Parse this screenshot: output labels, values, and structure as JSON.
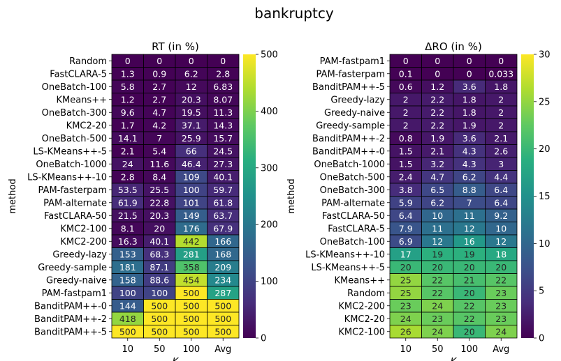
{
  "figure": {
    "title": "bankruptcy"
  },
  "chart_data": [
    {
      "type": "heatmap",
      "title": "RT (in %)",
      "xlabel": "K",
      "ylabel": "method",
      "columns": [
        "10",
        "50",
        "100",
        "Avg"
      ],
      "rows": [
        "Random",
        "FastCLARA-5",
        "OneBatch-100",
        "KMeans++",
        "OneBatch-300",
        "KMC2-20",
        "OneBatch-500",
        "LS-KMeans++-5",
        "OneBatch-1000",
        "LS-KMeans++-10",
        "PAM-fasterpam",
        "PAM-alternate",
        "FastCLARA-50",
        "KMC2-100",
        "KMC2-200",
        "Greedy-lazy",
        "Greedy-sample",
        "Greedy-naive",
        "PAM-fastpam1",
        "BanditPAM++-0",
        "BanditPAM++-2",
        "BanditPAM++-5"
      ],
      "values": [
        [
          0,
          0,
          0,
          0
        ],
        [
          1.3,
          0.9,
          6.2,
          2.8
        ],
        [
          5.8,
          2.7,
          12,
          6.83
        ],
        [
          1.2,
          2.7,
          20.3,
          8.07
        ],
        [
          9.6,
          4.7,
          19.5,
          11.3
        ],
        [
          1.7,
          4.2,
          37.1,
          14.3
        ],
        [
          14.1,
          7,
          25.9,
          15.7
        ],
        [
          2.1,
          5.4,
          66,
          24.5
        ],
        [
          24,
          11.6,
          46.4,
          27.3
        ],
        [
          2.8,
          8.4,
          109,
          40.1
        ],
        [
          53.5,
          25.5,
          100,
          59.7
        ],
        [
          61.9,
          22.8,
          101,
          61.8
        ],
        [
          21.5,
          20.3,
          149,
          63.7
        ],
        [
          8.1,
          20,
          176,
          67.9
        ],
        [
          16.3,
          40.1,
          442,
          166
        ],
        [
          153,
          68.3,
          281,
          168
        ],
        [
          181,
          87.1,
          358,
          209
        ],
        [
          158,
          88.6,
          454,
          234
        ],
        [
          100,
          100,
          500,
          287
        ],
        [
          144,
          500,
          500,
          500
        ],
        [
          418,
          500,
          500,
          500
        ],
        [
          500,
          500,
          500,
          500
        ]
      ],
      "colorbar": {
        "min": 0,
        "max": 500,
        "ticks": [
          "0",
          "100",
          "200",
          "300",
          "400",
          "500"
        ],
        "colormap": "viridis"
      }
    },
    {
      "type": "heatmap",
      "title": "ΔRO (in %)",
      "xlabel": "K",
      "ylabel": "method",
      "columns": [
        "10",
        "50",
        "100",
        "Avg"
      ],
      "rows": [
        "PAM-fastpam1",
        "PAM-fasterpam",
        "BanditPAM++-5",
        "Greedy-lazy",
        "Greedy-naive",
        "Greedy-sample",
        "BanditPAM++-2",
        "BanditPAM++-0",
        "OneBatch-1000",
        "OneBatch-500",
        "OneBatch-300",
        "PAM-alternate",
        "FastCLARA-50",
        "FastCLARA-5",
        "OneBatch-100",
        "LS-KMeans++-10",
        "LS-KMeans++-5",
        "KMeans++",
        "Random",
        "KMC2-200",
        "KMC2-20",
        "KMC2-100"
      ],
      "values": [
        [
          0,
          0,
          0,
          0
        ],
        [
          0.1,
          0,
          0,
          0.033
        ],
        [
          0.6,
          1.2,
          3.6,
          1.8
        ],
        [
          2,
          2.2,
          1.8,
          2
        ],
        [
          2,
          2.2,
          1.8,
          2
        ],
        [
          2,
          2.2,
          1.9,
          2
        ],
        [
          0.8,
          1.9,
          3.6,
          2.1
        ],
        [
          1.5,
          2.1,
          4.3,
          2.6
        ],
        [
          1.5,
          3.2,
          4.3,
          3
        ],
        [
          2.4,
          4.7,
          6.2,
          4.4
        ],
        [
          3.8,
          6.5,
          8.8,
          6.4
        ],
        [
          5.9,
          6.2,
          7,
          6.4
        ],
        [
          6.4,
          10,
          11,
          9.2
        ],
        [
          7.9,
          11,
          12,
          10
        ],
        [
          6.9,
          12,
          16,
          12
        ],
        [
          17,
          19,
          19,
          18
        ],
        [
          20,
          20,
          20,
          20
        ],
        [
          25,
          22,
          21,
          22
        ],
        [
          25,
          22,
          20,
          23
        ],
        [
          23,
          24,
          22,
          23
        ],
        [
          24,
          23,
          22,
          23
        ],
        [
          26,
          24,
          20,
          24
        ]
      ],
      "colorbar": {
        "min": 0,
        "max": 30,
        "ticks": [
          "0",
          "5",
          "10",
          "15",
          "20",
          "25",
          "30"
        ],
        "colormap": "viridis"
      }
    }
  ]
}
